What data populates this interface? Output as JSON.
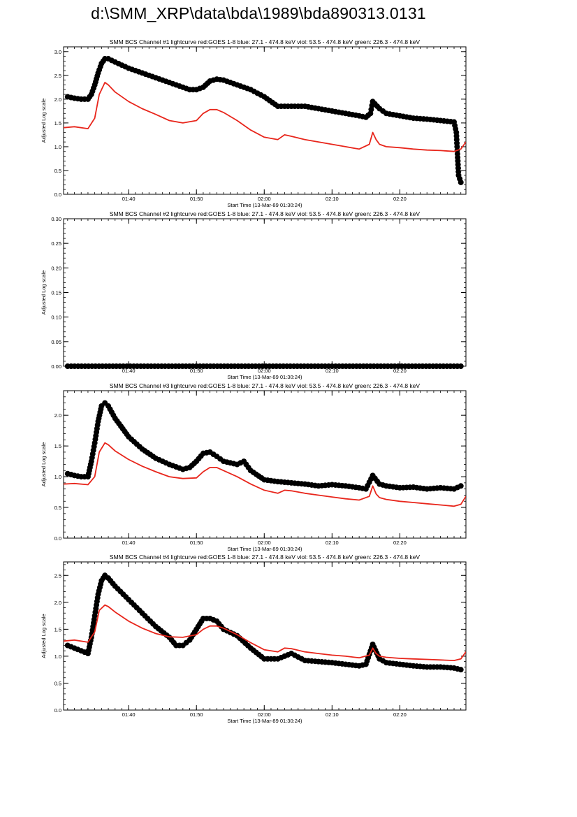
{
  "page": {
    "title": "d:\\SMM_XRP\\data\\bda\\1989\\bda890313.0131"
  },
  "colors": {
    "bcs": "#000000",
    "goes": "#e8261c",
    "axis": "#000000"
  },
  "chart_data": [
    {
      "type": "line",
      "title": "SMM BCS Channel #1 lightcurve  red:GOES 1-8  blue: 27.1 - 474.8 keV  viol: 53.5 - 474.8 keV  green: 226.3 - 474.8 keV",
      "xlabel": "Start Time (13-Mar-89 01:30:24)",
      "ylabel": "Adjusted Log scale",
      "xlim": [
        "01:30:24",
        "02:29:45"
      ],
      "ylim": [
        0.0,
        3.1
      ],
      "yticks": [
        0.0,
        0.5,
        1.0,
        1.5,
        2.0,
        2.5,
        3.0
      ],
      "ytick_labels": [
        "0.0",
        "0.5",
        "1.0",
        "1.5",
        "2.0",
        "2.5",
        "3.0"
      ],
      "xticks": [
        "01:40",
        "01:50",
        "02:00",
        "02:10",
        "02:20"
      ],
      "series": [
        {
          "role": "BCS",
          "color": "#000000",
          "marker": "circle",
          "x": [
            "01:31",
            "01:32",
            "01:33",
            "01:34",
            "01:34:30",
            "01:35",
            "01:35:30",
            "01:36",
            "01:36:30",
            "01:37",
            "01:38",
            "01:40",
            "01:42",
            "01:44",
            "01:46",
            "01:48",
            "01:49",
            "01:50",
            "01:51",
            "01:52",
            "01:53",
            "01:54",
            "01:56",
            "01:58",
            "02:00",
            "02:02",
            "02:04",
            "02:06",
            "02:08",
            "02:10",
            "02:12",
            "02:14",
            "02:15",
            "02:15:40",
            "02:16",
            "02:17",
            "02:18",
            "02:20",
            "02:22",
            "02:24",
            "02:26",
            "02:28",
            "02:28:20",
            "02:28:40",
            "02:29"
          ],
          "y": [
            2.05,
            2.02,
            2.0,
            2.0,
            2.1,
            2.3,
            2.55,
            2.75,
            2.85,
            2.85,
            2.78,
            2.65,
            2.55,
            2.45,
            2.35,
            2.25,
            2.2,
            2.2,
            2.25,
            2.38,
            2.42,
            2.4,
            2.3,
            2.2,
            2.05,
            1.85,
            1.85,
            1.85,
            1.8,
            1.75,
            1.7,
            1.65,
            1.62,
            1.7,
            1.95,
            1.8,
            1.7,
            1.65,
            1.6,
            1.58,
            1.55,
            1.52,
            1.3,
            0.4,
            0.25
          ]
        },
        {
          "role": "GOES 1-8",
          "color": "#e8261c",
          "marker": "none",
          "x": [
            "01:30:24",
            "01:32",
            "01:34",
            "01:35",
            "01:35:40",
            "01:36:30",
            "01:37",
            "01:38",
            "01:40",
            "01:42",
            "01:44",
            "01:46",
            "01:48",
            "01:50",
            "01:51",
            "01:52",
            "01:53",
            "01:54",
            "01:56",
            "01:58",
            "02:00",
            "02:02",
            "02:03",
            "02:04",
            "02:06",
            "02:08",
            "02:10",
            "02:12",
            "02:14",
            "02:15:30",
            "02:16",
            "02:16:30",
            "02:17",
            "02:18",
            "02:20",
            "02:22",
            "02:24",
            "02:26",
            "02:28",
            "02:29",
            "02:29:45"
          ],
          "y": [
            1.4,
            1.42,
            1.38,
            1.6,
            2.1,
            2.35,
            2.3,
            2.15,
            1.95,
            1.8,
            1.68,
            1.55,
            1.5,
            1.55,
            1.7,
            1.78,
            1.78,
            1.72,
            1.55,
            1.35,
            1.2,
            1.15,
            1.25,
            1.22,
            1.15,
            1.1,
            1.05,
            1.0,
            0.95,
            1.05,
            1.3,
            1.15,
            1.05,
            1.0,
            0.98,
            0.95,
            0.93,
            0.92,
            0.9,
            0.95,
            1.1
          ]
        }
      ]
    },
    {
      "type": "line",
      "title": "SMM BCS Channel #2 lightcurve  red:GOES 1-8  blue: 27.1 - 474.8 keV  viol: 53.5 - 474.8 keV  green: 226.3 - 474.8 keV",
      "xlabel": "Start Time (13-Mar-89 01:30:24)",
      "ylabel": "Adjusted Log scale",
      "xlim": [
        "01:30:24",
        "02:29:45"
      ],
      "ylim": [
        0.0,
        0.3
      ],
      "yticks": [
        0.0,
        0.05,
        0.1,
        0.15,
        0.2,
        0.25,
        0.3
      ],
      "ytick_labels": [
        "0.00",
        "0.05",
        "0.10",
        "0.15",
        "0.20",
        "0.25",
        "0.30"
      ],
      "xticks": [
        "01:40",
        "01:50",
        "02:00",
        "02:10",
        "02:20"
      ],
      "series": [
        {
          "role": "BCS",
          "color": "#000000",
          "marker": "circle",
          "x": [
            "01:31",
            "02:29"
          ],
          "y": [
            0.0,
            0.0
          ]
        }
      ]
    },
    {
      "type": "line",
      "title": "SMM BCS Channel #3 lightcurve  red:GOES 1-8  blue: 27.1 - 474.8 keV  viol: 53.5 - 474.8 keV  green: 226.3 - 474.8 keV",
      "xlabel": "Start Time (13-Mar-89 01:30:24)",
      "ylabel": "Adjusted Log scale",
      "xlim": [
        "01:30:24",
        "02:29:45"
      ],
      "ylim": [
        0.0,
        2.4
      ],
      "yticks": [
        0.0,
        0.5,
        1.0,
        1.5,
        2.0
      ],
      "ytick_labels": [
        "0.0",
        "0.5",
        "1.0",
        "1.5",
        "2.0"
      ],
      "xticks": [
        "01:40",
        "01:50",
        "02:00",
        "02:10",
        "02:20"
      ],
      "series": [
        {
          "role": "BCS",
          "color": "#000000",
          "marker": "circle",
          "x": [
            "01:31",
            "01:32",
            "01:33",
            "01:34",
            "01:34:30",
            "01:35",
            "01:35:30",
            "01:36",
            "01:36:30",
            "01:37",
            "01:38",
            "01:40",
            "01:42",
            "01:44",
            "01:46",
            "01:48",
            "01:49",
            "01:50",
            "01:51",
            "01:52",
            "01:53",
            "01:54",
            "01:56",
            "01:57",
            "01:58",
            "02:00",
            "02:02",
            "02:04",
            "02:06",
            "02:08",
            "02:10",
            "02:12",
            "02:14",
            "02:15",
            "02:16",
            "02:17",
            "02:18",
            "02:20",
            "02:22",
            "02:24",
            "02:26",
            "02:28",
            "02:29"
          ],
          "y": [
            1.05,
            1.02,
            1.0,
            1.0,
            1.25,
            1.55,
            1.9,
            2.15,
            2.2,
            2.15,
            1.95,
            1.65,
            1.45,
            1.3,
            1.2,
            1.12,
            1.15,
            1.25,
            1.38,
            1.4,
            1.33,
            1.25,
            1.2,
            1.25,
            1.1,
            0.95,
            0.92,
            0.9,
            0.88,
            0.85,
            0.87,
            0.85,
            0.82,
            0.8,
            1.02,
            0.88,
            0.85,
            0.82,
            0.83,
            0.8,
            0.82,
            0.8,
            0.85
          ]
        },
        {
          "role": "GOES 1-8",
          "color": "#e8261c",
          "marker": "none",
          "x": [
            "01:30:24",
            "01:32",
            "01:34",
            "01:35",
            "01:35:40",
            "01:36:30",
            "01:37",
            "01:38",
            "01:40",
            "01:42",
            "01:44",
            "01:46",
            "01:48",
            "01:50",
            "01:51",
            "01:52",
            "01:53",
            "01:54",
            "01:56",
            "01:58",
            "02:00",
            "02:02",
            "02:03",
            "02:04",
            "02:06",
            "02:08",
            "02:10",
            "02:12",
            "02:14",
            "02:15:30",
            "02:16",
            "02:16:30",
            "02:17",
            "02:18",
            "02:20",
            "02:22",
            "02:24",
            "02:26",
            "02:28",
            "02:29",
            "02:29:45"
          ],
          "y": [
            0.88,
            0.89,
            0.87,
            1.0,
            1.4,
            1.55,
            1.52,
            1.42,
            1.28,
            1.17,
            1.08,
            1.0,
            0.97,
            0.98,
            1.08,
            1.15,
            1.15,
            1.1,
            1.0,
            0.88,
            0.78,
            0.73,
            0.78,
            0.77,
            0.73,
            0.7,
            0.67,
            0.64,
            0.62,
            0.68,
            0.85,
            0.72,
            0.66,
            0.63,
            0.6,
            0.58,
            0.56,
            0.54,
            0.52,
            0.55,
            0.68
          ]
        }
      ]
    },
    {
      "type": "line",
      "title": "SMM BCS Channel #4 lightcurve  red:GOES 1-8  blue: 27.1 - 474.8 keV  viol: 53.5 - 474.8 keV  green: 226.3 - 474.8 keV",
      "xlabel": "Start Time (13-Mar-89 01:30:24)",
      "ylabel": "Adjusted Log scale",
      "xlim": [
        "01:30:24",
        "02:29:45"
      ],
      "ylim": [
        0.0,
        2.75
      ],
      "yticks": [
        0.0,
        0.5,
        1.0,
        1.5,
        2.0,
        2.5
      ],
      "ytick_labels": [
        "0.0",
        "0.5",
        "1.0",
        "1.5",
        "2.0",
        "2.5"
      ],
      "xticks": [
        "01:40",
        "01:50",
        "02:00",
        "02:10",
        "02:20"
      ],
      "series": [
        {
          "role": "BCS",
          "color": "#000000",
          "marker": "circle",
          "x": [
            "01:31",
            "01:32",
            "01:33",
            "01:34",
            "01:34:30",
            "01:35",
            "01:35:30",
            "01:36",
            "01:36:30",
            "01:37",
            "01:38",
            "01:40",
            "01:42",
            "01:44",
            "01:46",
            "01:47",
            "01:48",
            "01:49",
            "01:50",
            "01:51",
            "01:52",
            "01:53",
            "01:54",
            "01:56",
            "01:58",
            "02:00",
            "02:02",
            "02:04",
            "02:06",
            "02:08",
            "02:10",
            "02:12",
            "02:14",
            "02:15",
            "02:16",
            "02:17",
            "02:18",
            "02:20",
            "02:22",
            "02:24",
            "02:26",
            "02:28",
            "02:29"
          ],
          "y": [
            1.2,
            1.15,
            1.1,
            1.05,
            1.35,
            1.75,
            2.15,
            2.4,
            2.5,
            2.45,
            2.3,
            2.05,
            1.8,
            1.55,
            1.35,
            1.2,
            1.2,
            1.3,
            1.5,
            1.7,
            1.7,
            1.65,
            1.5,
            1.38,
            1.15,
            0.95,
            0.95,
            1.05,
            0.92,
            0.9,
            0.88,
            0.85,
            0.82,
            0.85,
            1.22,
            0.95,
            0.88,
            0.85,
            0.82,
            0.8,
            0.8,
            0.78,
            0.75
          ]
        },
        {
          "role": "GOES 1-8",
          "color": "#e8261c",
          "marker": "none",
          "x": [
            "01:30:24",
            "01:32",
            "01:34",
            "01:35",
            "01:35:40",
            "01:36:30",
            "01:37",
            "01:38",
            "01:40",
            "01:42",
            "01:44",
            "01:46",
            "01:48",
            "01:50",
            "01:51",
            "01:52",
            "01:53",
            "01:54",
            "01:56",
            "01:58",
            "02:00",
            "02:02",
            "02:03",
            "02:04",
            "02:06",
            "02:08",
            "02:10",
            "02:12",
            "02:14",
            "02:15:30",
            "02:16",
            "02:16:30",
            "02:17",
            "02:18",
            "02:20",
            "02:22",
            "02:24",
            "02:26",
            "02:28",
            "02:29",
            "02:29:45"
          ],
          "y": [
            1.28,
            1.3,
            1.26,
            1.45,
            1.85,
            1.95,
            1.92,
            1.82,
            1.65,
            1.52,
            1.42,
            1.36,
            1.35,
            1.4,
            1.5,
            1.56,
            1.56,
            1.52,
            1.4,
            1.25,
            1.12,
            1.08,
            1.15,
            1.14,
            1.08,
            1.05,
            1.02,
            1.0,
            0.97,
            1.02,
            1.15,
            1.05,
            1.0,
            0.98,
            0.96,
            0.95,
            0.94,
            0.93,
            0.92,
            0.95,
            1.08
          ]
        }
      ]
    }
  ]
}
